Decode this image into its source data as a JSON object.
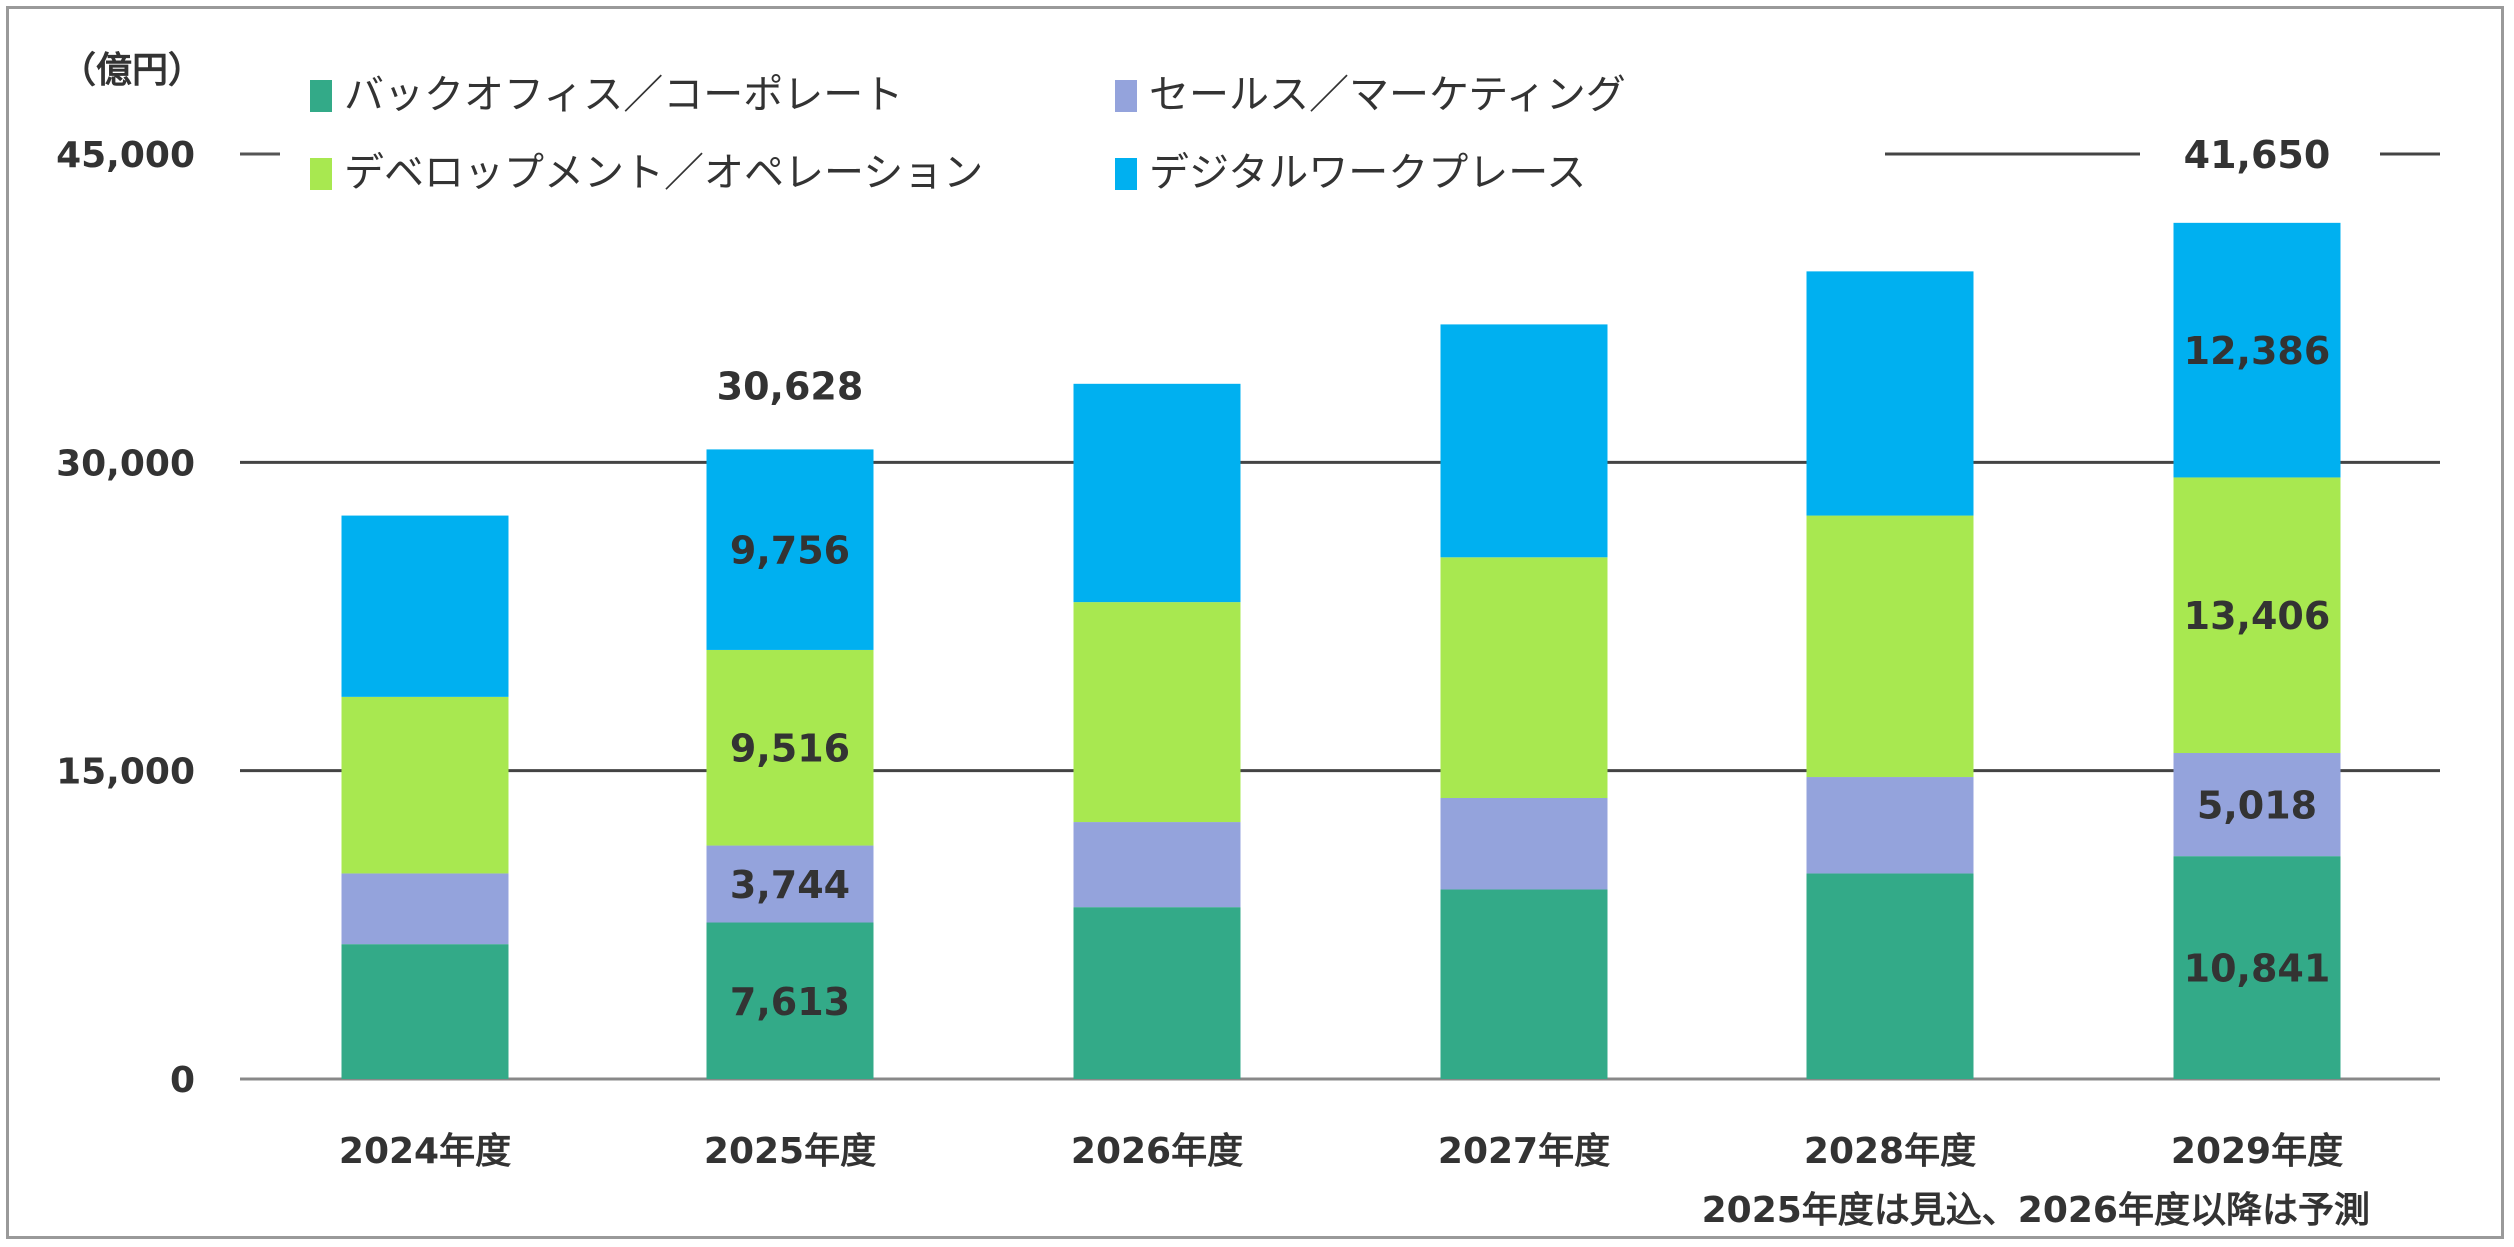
{
  "chart_data": {
    "type": "bar",
    "stacked": true,
    "unit_label": "（億円）",
    "categories": [
      "2024年度",
      "2025年度",
      "2026年度",
      "2027年度",
      "2028年度",
      "2029年度"
    ],
    "series": [
      {
        "name": "バックオフィス／コーポレート",
        "color": "#33aa88",
        "values": [
          6560,
          7613,
          8360,
          9220,
          10000,
          10841
        ]
      },
      {
        "name": "セールス／マーケティング",
        "color": "#94a3dc",
        "values": [
          3440,
          3744,
          4140,
          4450,
          4690,
          5018
        ]
      },
      {
        "name": "デベロップメント／オペレーション",
        "color": "#a8e850",
        "values": [
          8590,
          9516,
          10700,
          11710,
          12720,
          13406
        ]
      },
      {
        "name": "デジタルワークプレース",
        "color": "#00b0f0",
        "values": [
          8820,
          9756,
          10620,
          11330,
          11880,
          12386
        ]
      }
    ],
    "data_labels": {
      "2025年度": [
        "7,613",
        "3,744",
        "9,516",
        "9,756"
      ],
      "2029年度": [
        "10,841",
        "5,018",
        "13,406",
        "12,386"
      ]
    },
    "totals": {
      "2025年度": "30,628",
      "2029年度": "41,650"
    },
    "yticks": [
      "0",
      "15,000",
      "30,000",
      "45,000"
    ],
    "ytick_values": [
      0,
      15000,
      30000,
      45000
    ],
    "ylim": [
      0,
      45000
    ],
    "grid": true,
    "legend_position": "top",
    "footnote": "2025年度は見込、2026年度以降は予測"
  }
}
